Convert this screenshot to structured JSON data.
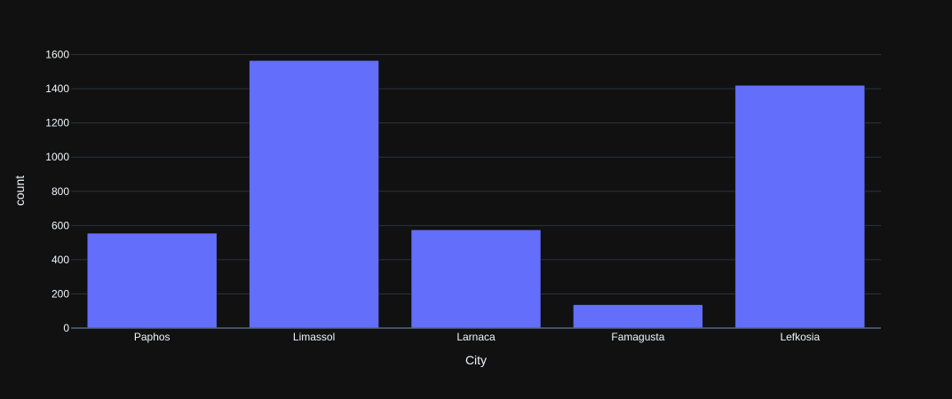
{
  "chart_data": {
    "type": "bar",
    "categories": [
      "Paphos",
      "Limassol",
      "Larnaca",
      "Famagusta",
      "Lefkosia"
    ],
    "values": [
      555,
      1565,
      575,
      137,
      1420
    ],
    "xlabel": "City",
    "ylabel": "count",
    "ylim": [
      0,
      1660
    ],
    "yticks": [
      0,
      200,
      400,
      600,
      800,
      1000,
      1200,
      1400,
      1600
    ],
    "grid": true,
    "bar_color": "#636efa",
    "background_color": "#111111",
    "grid_color": "#283442",
    "text_color": "#f2f5fa"
  }
}
